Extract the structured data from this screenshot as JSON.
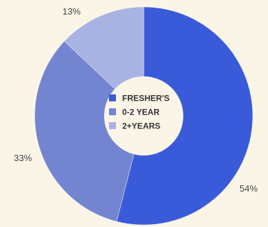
{
  "chart_data": {
    "type": "pie",
    "donut": true,
    "title": "",
    "categories": [
      "FRESHER'S",
      "0-2 YEAR",
      "2+YEARS"
    ],
    "values": [
      54,
      33,
      13
    ],
    "value_labels": [
      "54%",
      "33%",
      "13%"
    ],
    "colors": [
      "#3a5bd9",
      "#7385d1",
      "#a8b3e4"
    ],
    "legend_position": "center"
  }
}
